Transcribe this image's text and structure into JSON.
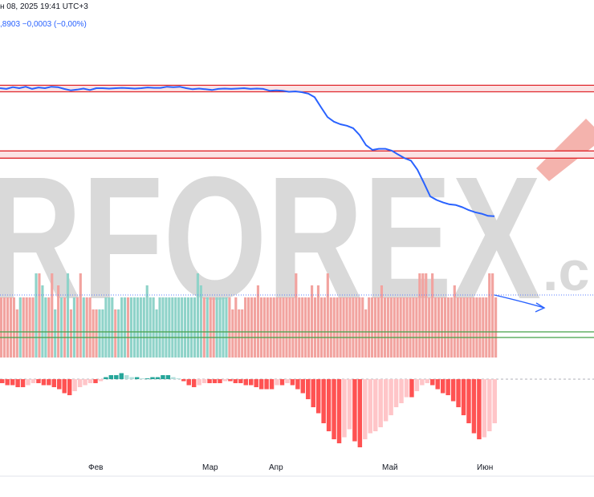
{
  "header": {
    "date_text": "н 08, 2025 19:41 UTC+3",
    "value_text": ",8903  −0,0003 (−0,00%)"
  },
  "watermark": {
    "text": "RFOREX",
    "suffix": ".c",
    "color": "#d9d9d9",
    "accent": "#f4b3ad"
  },
  "colors": {
    "line": "#2962ff",
    "zone_fill": "#fbe3e4",
    "zone_border": "#e0282d",
    "bar_red": "#f2a39f",
    "bar_teal": "#8fd3c9",
    "osc_red": "#ff5252",
    "osc_red_light": "#ffc5c8",
    "osc_teal": "#26a69a",
    "osc_teal_light": "#b2dfdb",
    "green_level": "#43a047",
    "axis_text": "#131722"
  },
  "chart_data": {
    "type": "line",
    "x": [
      0,
      8,
      16,
      24,
      32,
      40,
      48,
      56,
      64,
      72,
      80,
      88,
      96,
      104,
      112,
      120,
      128,
      136,
      144,
      152,
      160,
      168,
      176,
      184,
      192,
      200,
      208,
      216,
      224,
      232,
      240,
      248,
      256,
      264,
      272,
      280,
      288,
      296,
      304,
      312,
      320,
      328,
      336,
      344,
      352,
      360,
      368,
      376,
      384,
      392,
      400,
      408,
      416,
      424,
      432,
      440,
      448,
      456,
      464,
      472,
      480,
      488,
      496,
      504,
      512,
      520,
      528,
      536,
      544,
      552,
      560,
      568,
      576,
      584,
      592,
      600,
      608,
      616
    ],
    "series": [
      {
        "values": [
          1.0,
          0.998,
          1.003,
          1.0,
          1.004,
          0.998,
          1.002,
          1.0,
          1.004,
          1.003,
          0.998,
          0.994,
          0.996,
          0.999,
          0.995,
          1.0,
          1.0,
          0.999,
          1.0,
          1.001,
          1.0,
          0.999,
          1.0,
          1.002,
          1.001,
          1.001,
          1.004,
          1.003,
          1.004,
          1.0,
          0.997,
          0.999,
          0.997,
          0.995,
          0.998,
          0.999,
          0.998,
          0.999,
          1.0,
          0.998,
          0.999,
          0.998,
          0.993,
          0.994,
          0.993,
          0.99,
          0.991,
          0.989,
          0.985,
          0.975,
          0.947,
          0.92,
          0.907,
          0.9,
          0.896,
          0.889,
          0.87,
          0.842,
          0.829,
          0.832,
          0.832,
          0.827,
          0.816,
          0.806,
          0.799,
          0.774,
          0.738,
          0.7,
          0.69,
          0.683,
          0.678,
          0.676,
          0.67,
          0.662,
          0.656,
          0.652,
          0.646,
          0.645
        ]
      }
    ],
    "x_tick_labels": [
      "Фев",
      "Мар",
      "Апр",
      "Май",
      "Июн"
    ],
    "resistance_zones": [
      [
        0.99,
        1.008
      ],
      [
        0.806,
        0.826
      ]
    ],
    "histogram": {
      "values": [
        5,
        5,
        5,
        5,
        5,
        4,
        5,
        5,
        5,
        5,
        5,
        7,
        7,
        6,
        5,
        5,
        7,
        4,
        6,
        5,
        5,
        7,
        4,
        5,
        5,
        7,
        5,
        5,
        5,
        4,
        4,
        4,
        4,
        5,
        5,
        5,
        4,
        4,
        5,
        5,
        5,
        5,
        5,
        5,
        5,
        5,
        6,
        5,
        5,
        4,
        5,
        5,
        5,
        5,
        5,
        5,
        5,
        5,
        5,
        5,
        5,
        5,
        7,
        6,
        5,
        5,
        5,
        5,
        5,
        5,
        5,
        5,
        5,
        4,
        5,
        4,
        4,
        5,
        5,
        5,
        5,
        6,
        5,
        5,
        5,
        5,
        5,
        5,
        5,
        5,
        5,
        5,
        5,
        7,
        5,
        5,
        5,
        5,
        6,
        5,
        6,
        5,
        5,
        7,
        5,
        5,
        5,
        5,
        5,
        5,
        5,
        5,
        5,
        5,
        5,
        4,
        5,
        5,
        5,
        5,
        6,
        5,
        5,
        5,
        5,
        5,
        5,
        5,
        5,
        5,
        5,
        5,
        7,
        7,
        7,
        5,
        7,
        5,
        5,
        5,
        5,
        5,
        5,
        6,
        5,
        5,
        5,
        5,
        5,
        5,
        5,
        5,
        5,
        5,
        7,
        7,
        5
      ],
      "directions": "rrrrrrtrrrrtrttrrtrtrtrtrrtrrrrtttttrtttrtttttttttttttttttttttttrtrrttttrrrrrrrrrrrrrrrrrrrrrrrrrrrrrrrrrrrrrrrrrrrrrrrrrrrrrrrrrrrrrrrrrrrrrrrrrrrrrrrrrrrrrrrrrr"
    },
    "oscillator": {
      "values": [
        -2,
        -3,
        -3,
        -4,
        -4,
        -3,
        -2,
        -2,
        -3,
        -3,
        -4,
        -5,
        -7,
        -8,
        -6,
        -4,
        -3,
        -2,
        -2,
        -1,
        1,
        2,
        2,
        3,
        2,
        1,
        1,
        0,
        0,
        1,
        1,
        2,
        2,
        1,
        0,
        -1,
        -3,
        -4,
        -3,
        -2,
        -2,
        -2,
        -2,
        -1,
        -1,
        -2,
        -2,
        -3,
        -3,
        -4,
        -5,
        -5,
        -5,
        -3,
        -3,
        -2,
        -3,
        -5,
        -7,
        -10,
        -14,
        -17,
        -22,
        -26,
        -30,
        -32,
        -29,
        -25,
        -31,
        -34,
        -30,
        -27,
        -26,
        -24,
        -21,
        -18,
        -14,
        -12,
        -9,
        -9,
        -6,
        -3,
        -2,
        -3,
        -5,
        -7,
        -8,
        -11,
        -14,
        -18,
        -22,
        -27,
        -30,
        -29,
        -26,
        -22
      ],
      "range": [
        -36,
        5
      ]
    }
  }
}
